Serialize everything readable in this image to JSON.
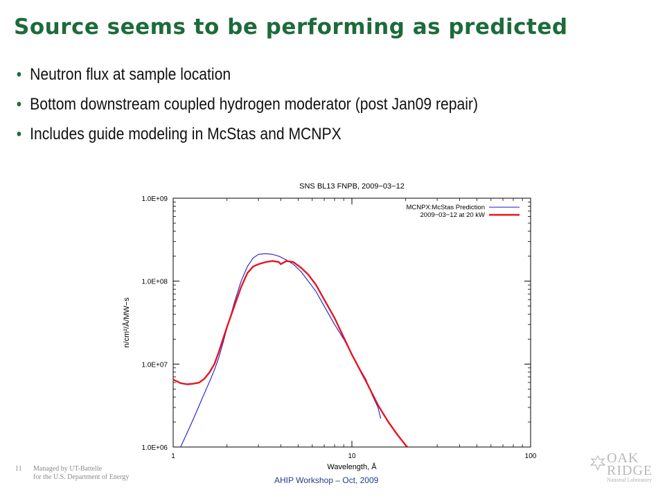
{
  "slide": {
    "title": "Source seems to be performing as predicted",
    "bullets": [
      "Neutron flux at sample location",
      "Bottom downstream coupled hydrogen moderator (post Jan09 repair)",
      "Includes guide modeling in McStas and MCNPX"
    ]
  },
  "footer": {
    "page_number": "11",
    "managed_by_line1": "Managed by UT-Battelle",
    "managed_by_line2": "for the U.S. Department of Energy",
    "workshop": "AHIP Workshop – Oct, 2009",
    "logo_text_1": "OAK",
    "logo_text_2": "RIDGE",
    "logo_text_3": "National Laboratory"
  },
  "colors": {
    "title": "#1d6b3b",
    "bullet_dot": "#1d6b3b",
    "series_blue": "#1a1ad6",
    "series_red": "#e8141e",
    "footer_center": "#1d3f8c"
  },
  "chart_data": {
    "type": "line",
    "title": "SNS BL13 FNPB, 2009−03−12",
    "xlabel": "Wavelength, Å",
    "ylabel": "n/cm²/Å/MW−s",
    "xscale": "log",
    "yscale": "log",
    "xlim": [
      1,
      100
    ],
    "ylim": [
      1000000,
      1000000000
    ],
    "x_ticks": [
      "1",
      "10",
      "100"
    ],
    "y_ticks": [
      "1.0E+06",
      "1.0E+07",
      "1.0E+08",
      "1.0E+09"
    ],
    "grid": false,
    "legend_position": "top-right",
    "series": [
      {
        "name": "MCNPX:McStas Prediction",
        "color": "#1a1ad6",
        "x": [
          1.1,
          1.2,
          1.3,
          1.4,
          1.5,
          1.6,
          1.7,
          1.8,
          1.9,
          2.0,
          2.2,
          2.4,
          2.6,
          2.8,
          3.0,
          3.3,
          3.6,
          3.9,
          4.3,
          4.7,
          5.2,
          5.7,
          6.3,
          7.0,
          8.0,
          9.0,
          10.0,
          11.0,
          12.0,
          13.0,
          14.0,
          14.5
        ],
        "y": [
          1000000,
          1500000,
          2200000,
          3200000,
          4500000,
          6200000,
          8500000,
          12000000,
          18000000,
          27000000,
          55000000,
          100000000,
          150000000,
          190000000,
          210000000,
          215000000,
          210000000,
          200000000,
          180000000,
          160000000,
          130000000,
          100000000,
          75000000,
          50000000,
          30000000,
          20000000,
          13000000,
          9000000,
          6500000,
          4200000,
          3000000,
          2200000
        ]
      },
      {
        "name": "2009−03−12 at 20 kW",
        "color": "#e8141e",
        "x": [
          1.0,
          1.1,
          1.2,
          1.3,
          1.4,
          1.5,
          1.6,
          1.7,
          1.8,
          1.9,
          2.0,
          2.2,
          2.4,
          2.6,
          2.8,
          3.0,
          3.3,
          3.6,
          3.9,
          4.0,
          4.3,
          4.7,
          5.2,
          5.7,
          6.3,
          7.0,
          8.0,
          9.0,
          10.0,
          12.0,
          14.0,
          16.0,
          18.0,
          20.0,
          20.5
        ],
        "y": [
          6500000,
          5900000,
          5700000,
          5800000,
          6000000,
          6700000,
          8000000,
          10000000,
          14000000,
          20000000,
          28000000,
          50000000,
          85000000,
          125000000,
          150000000,
          160000000,
          170000000,
          175000000,
          170000000,
          160000000,
          175000000,
          170000000,
          145000000,
          120000000,
          90000000,
          60000000,
          36000000,
          21000000,
          13000000,
          6200000,
          3200000,
          2000000,
          1400000,
          1050000,
          1000000
        ]
      }
    ]
  }
}
